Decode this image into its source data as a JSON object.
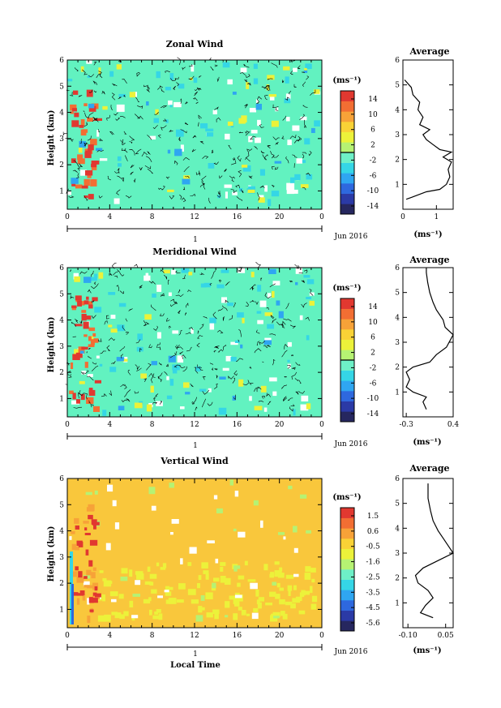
{
  "colors": {
    "zonal_background": "#62f2c0",
    "meridional_background": "#62f2c0",
    "vertical_background": "#f9c73c",
    "colorbar": [
      "#26275f",
      "#2b3aa6",
      "#2e68de",
      "#2fa6f1",
      "#35d6e6",
      "#6ef0c7",
      "#b6f273",
      "#ecf23a",
      "#f9d236",
      "#f7a238",
      "#f26e33",
      "#e13830"
    ]
  },
  "chart_data": [
    {
      "type": "heatmap",
      "title": "Zonal Wind",
      "ylabel": "Height (km)",
      "x_ticks": [
        "0",
        "4",
        "8",
        "12",
        "16",
        "20",
        "0"
      ],
      "y_ticks": [
        "1",
        "2",
        "3",
        "4",
        "5",
        "6"
      ],
      "xlim": [
        0,
        24
      ],
      "ylim": [
        0.3,
        6
      ],
      "date_tick": "1",
      "date_label": "Jun 2016",
      "colorbar": {
        "unit_label": "(ms⁻¹)",
        "tick_labels": [
          "14",
          "10",
          "6",
          "2",
          "-2",
          "-6",
          "-10",
          "-14"
        ],
        "range": [
          -16,
          16
        ]
      },
      "average_profile": {
        "title": "Average",
        "xlabel": "(ms⁻¹)",
        "x_ticks": [
          "0",
          "1"
        ],
        "xlim": [
          0,
          1.5
        ],
        "ylim": [
          0,
          6
        ],
        "y_ticks": [
          "1",
          "2",
          "3",
          "4",
          "5",
          "6"
        ],
        "points": [
          [
            0.1,
            0.4
          ],
          [
            0.3,
            0.5
          ],
          [
            0.7,
            0.7
          ],
          [
            1.1,
            0.8
          ],
          [
            1.3,
            1.0
          ],
          [
            1.4,
            1.3
          ],
          [
            1.35,
            1.6
          ],
          [
            1.45,
            1.9
          ],
          [
            1.2,
            2.1
          ],
          [
            1.45,
            2.3
          ],
          [
            1.1,
            2.4
          ],
          [
            0.9,
            2.6
          ],
          [
            0.7,
            2.8
          ],
          [
            0.6,
            3.0
          ],
          [
            0.8,
            3.2
          ],
          [
            0.5,
            3.4
          ],
          [
            0.6,
            3.7
          ],
          [
            0.45,
            4.0
          ],
          [
            0.5,
            4.3
          ],
          [
            0.3,
            4.6
          ],
          [
            0.25,
            4.9
          ],
          [
            0.05,
            5.2
          ]
        ]
      }
    },
    {
      "type": "heatmap",
      "title": "Meridional Wind",
      "ylabel": "Height (km)",
      "x_ticks": [
        "0",
        "4",
        "8",
        "12",
        "16",
        "20",
        "0"
      ],
      "y_ticks": [
        "1",
        "2",
        "3",
        "4",
        "5",
        "6"
      ],
      "xlim": [
        0,
        24
      ],
      "ylim": [
        0.3,
        6
      ],
      "date_tick": "1",
      "date_label": "Jun 2016",
      "colorbar": {
        "unit_label": "(ms⁻¹)",
        "tick_labels": [
          "14",
          "10",
          "6",
          "2",
          "-2",
          "-6",
          "-10",
          "-14"
        ],
        "range": [
          -16,
          16
        ]
      },
      "average_profile": {
        "title": "Average",
        "xlabel": "(ms⁻¹)",
        "x_ticks": [
          "-0.3",
          "0.4"
        ],
        "xlim": [
          -0.35,
          0.4
        ],
        "ylim": [
          0,
          6
        ],
        "y_ticks": [
          "1",
          "2",
          "3",
          "4",
          "5",
          "6"
        ],
        "points": [
          [
            0.0,
            0.3
          ],
          [
            -0.05,
            0.6
          ],
          [
            0.0,
            0.8
          ],
          [
            -0.2,
            1.0
          ],
          [
            -0.3,
            1.2
          ],
          [
            -0.25,
            1.5
          ],
          [
            -0.3,
            1.8
          ],
          [
            -0.2,
            2.0
          ],
          [
            0.05,
            2.2
          ],
          [
            0.15,
            2.5
          ],
          [
            0.3,
            2.8
          ],
          [
            0.4,
            3.3
          ],
          [
            0.28,
            3.6
          ],
          [
            0.25,
            3.9
          ],
          [
            0.15,
            4.3
          ],
          [
            0.1,
            4.6
          ],
          [
            0.05,
            5.0
          ],
          [
            0.02,
            5.4
          ],
          [
            0.0,
            5.8
          ],
          [
            0.0,
            6.0
          ]
        ]
      }
    },
    {
      "type": "heatmap",
      "title": "Vertical Wind",
      "xlabel": "Local Time",
      "ylabel": "Height (km)",
      "x_ticks": [
        "0",
        "4",
        "8",
        "12",
        "16",
        "20",
        "0"
      ],
      "y_ticks": [
        "1",
        "2",
        "3",
        "4",
        "5",
        "6"
      ],
      "xlim": [
        0,
        24
      ],
      "ylim": [
        0.3,
        6
      ],
      "date_tick": "1",
      "date_label": "Jun 2016",
      "colorbar": {
        "unit_label": "(ms⁻¹)",
        "tick_labels": [
          "1.5",
          "0.6",
          "-0.5",
          "-1.6",
          "-2.5",
          "-3.5",
          "-4.5",
          "-5.6"
        ],
        "range": [
          -6,
          2
        ]
      },
      "average_profile": {
        "title": "Average",
        "xlabel": "(ms⁻¹)",
        "x_ticks": [
          "-0.10",
          "0.05"
        ],
        "xlim": [
          -0.12,
          0.08
        ],
        "ylim": [
          0,
          6
        ],
        "y_ticks": [
          "1",
          "2",
          "3",
          "4",
          "5",
          "6"
        ],
        "points": [
          [
            0.0,
            0.4
          ],
          [
            -0.05,
            0.6
          ],
          [
            -0.03,
            0.9
          ],
          [
            0.0,
            1.2
          ],
          [
            -0.02,
            1.5
          ],
          [
            -0.06,
            1.8
          ],
          [
            -0.07,
            2.1
          ],
          [
            -0.04,
            2.4
          ],
          [
            0.02,
            2.7
          ],
          [
            0.08,
            3.0
          ],
          [
            0.06,
            3.3
          ],
          [
            0.04,
            3.6
          ],
          [
            0.02,
            3.9
          ],
          [
            0.0,
            4.3
          ],
          [
            -0.01,
            4.7
          ],
          [
            -0.02,
            5.2
          ],
          [
            -0.02,
            5.8
          ]
        ]
      }
    }
  ]
}
